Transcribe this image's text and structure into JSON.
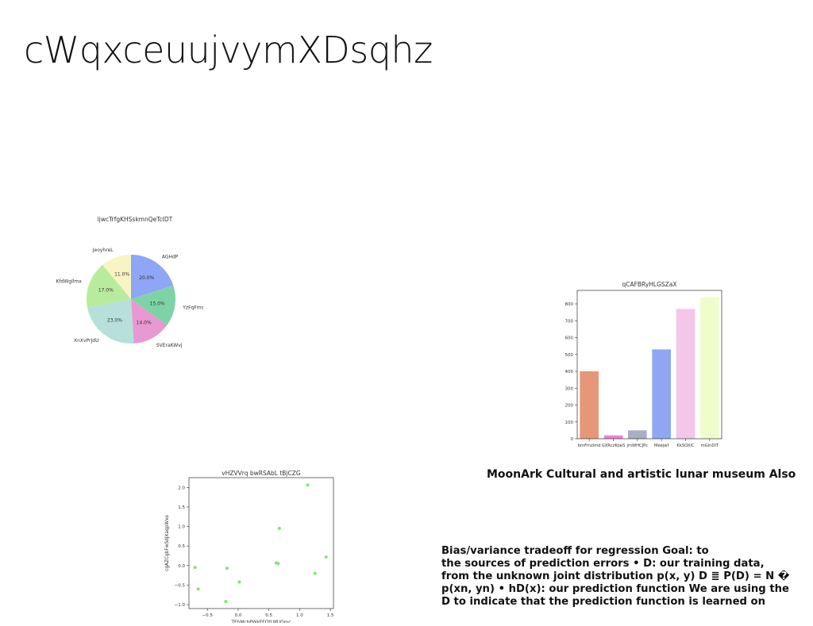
{
  "page": {
    "title": "cWqxceuujvymXDsqhz",
    "caption": "MoonArk Cultural and artistic lunar museum Also",
    "body_lines": [
      "Bias/variance tradeoff for regression Goal: to",
      "the sources of prediction errors • D: our training data,",
      "from the unknown joint distribution p(x, y) D ≣ P(D) = N �",
      "p(xn, yn) • hD(x): our prediction function We are using the",
      "D to indicate that the prediction function is learned on"
    ]
  },
  "chart_data": [
    {
      "type": "pie",
      "title": "ljwcTrfgKHSskmnQeTcIDT",
      "labels": [
        "AGHdP",
        "YzFqFmc",
        "SVEraKWvj",
        "XnXvPrJdU",
        "KfdWgllmx",
        "JeoyhreL"
      ],
      "values": [
        20.0,
        15.0,
        14.0,
        23.0,
        17.0,
        11.0
      ],
      "value_labels": [
        "20.0%",
        "15.0%",
        "14.0%",
        "23.0%",
        "17.0%",
        "11.0%"
      ],
      "colors": [
        "#8fa5f5",
        "#7ed3a6",
        "#e898d2",
        "#b6e0d9",
        "#b8ec9c",
        "#f8f4c4"
      ],
      "start_angle_deg": 90,
      "direction": "clockwise"
    },
    {
      "type": "bar",
      "title": "qCAFBRyHLGSZaX",
      "categories": [
        "bmFrnzImd",
        "GXRczKoeS",
        "jmWHCJPc",
        "Meejwf",
        "KkSOXIC",
        "mGlnDIT"
      ],
      "values": [
        400,
        20,
        50,
        530,
        770,
        840
      ],
      "colors": [
        "#e8967a",
        "#ee82d6",
        "#a8aec4",
        "#8fa7f2",
        "#f3c6ea",
        "#effdcc"
      ],
      "ylim": [
        0,
        880
      ],
      "yticks": [
        0,
        100,
        200,
        300,
        400,
        500,
        600,
        700,
        800
      ],
      "xlabel": "",
      "ylabel": ""
    },
    {
      "type": "scatter",
      "title": "vHZVVrq bwRSAbL tBjCZG",
      "xlabel": "TEhMcbPWkFEOtLMUQmc",
      "ylabel": "cgAZCgbFwSdjXaqpWxo",
      "x": [
        -0.7,
        -0.65,
        -0.2,
        -0.18,
        0.02,
        0.62,
        0.65,
        0.67,
        1.13,
        1.25,
        1.43
      ],
      "y": [
        -0.05,
        -0.6,
        -0.92,
        -0.07,
        -0.42,
        0.07,
        0.05,
        0.95,
        2.06,
        -0.2,
        0.22
      ],
      "color": "#86e07a",
      "xlim": [
        -0.8,
        1.55
      ],
      "ylim": [
        -1.1,
        2.25
      ],
      "xticks": [
        -0.5,
        0.0,
        0.5,
        1.0,
        1.5
      ],
      "xtick_labels": [
        "−0.5",
        "0.0",
        "0.5",
        "1.0",
        "1.5"
      ],
      "yticks": [
        -1.0,
        -0.5,
        0.0,
        0.5,
        1.0,
        1.5,
        2.0
      ],
      "ytick_labels": [
        "−1.0",
        "−0.5",
        "0.0",
        "0.5",
        "1.0",
        "1.5",
        "2.0"
      ]
    }
  ]
}
